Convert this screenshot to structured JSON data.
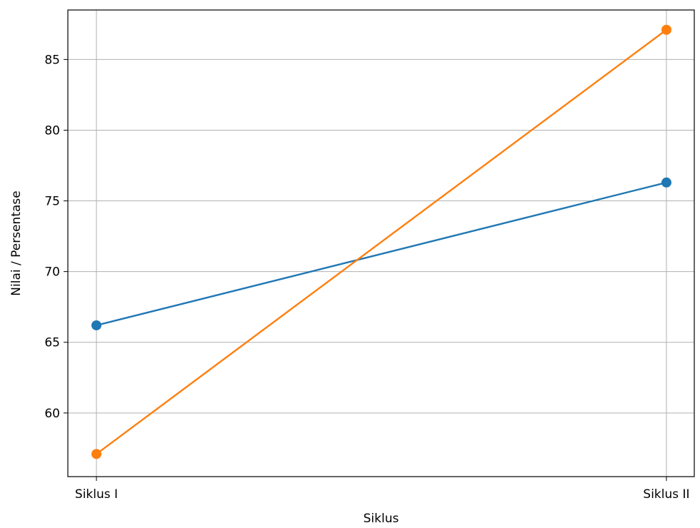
{
  "chart_data": {
    "type": "line",
    "title": "",
    "xlabel": "Siklus",
    "ylabel": "Nilai / Persentase",
    "categories": [
      "Siklus I",
      "Siklus II"
    ],
    "series": [
      {
        "values": [
          66.2,
          76.3
        ],
        "color": "#1f77b4",
        "marker": "circle"
      },
      {
        "values": [
          57.1,
          87.1
        ],
        "color": "#ff7f0e",
        "marker": "circle"
      }
    ],
    "ylim": [
      55.5,
      88.5
    ],
    "yticks": [
      60,
      65,
      70,
      75,
      80,
      85
    ],
    "grid": true,
    "legend": "none"
  }
}
